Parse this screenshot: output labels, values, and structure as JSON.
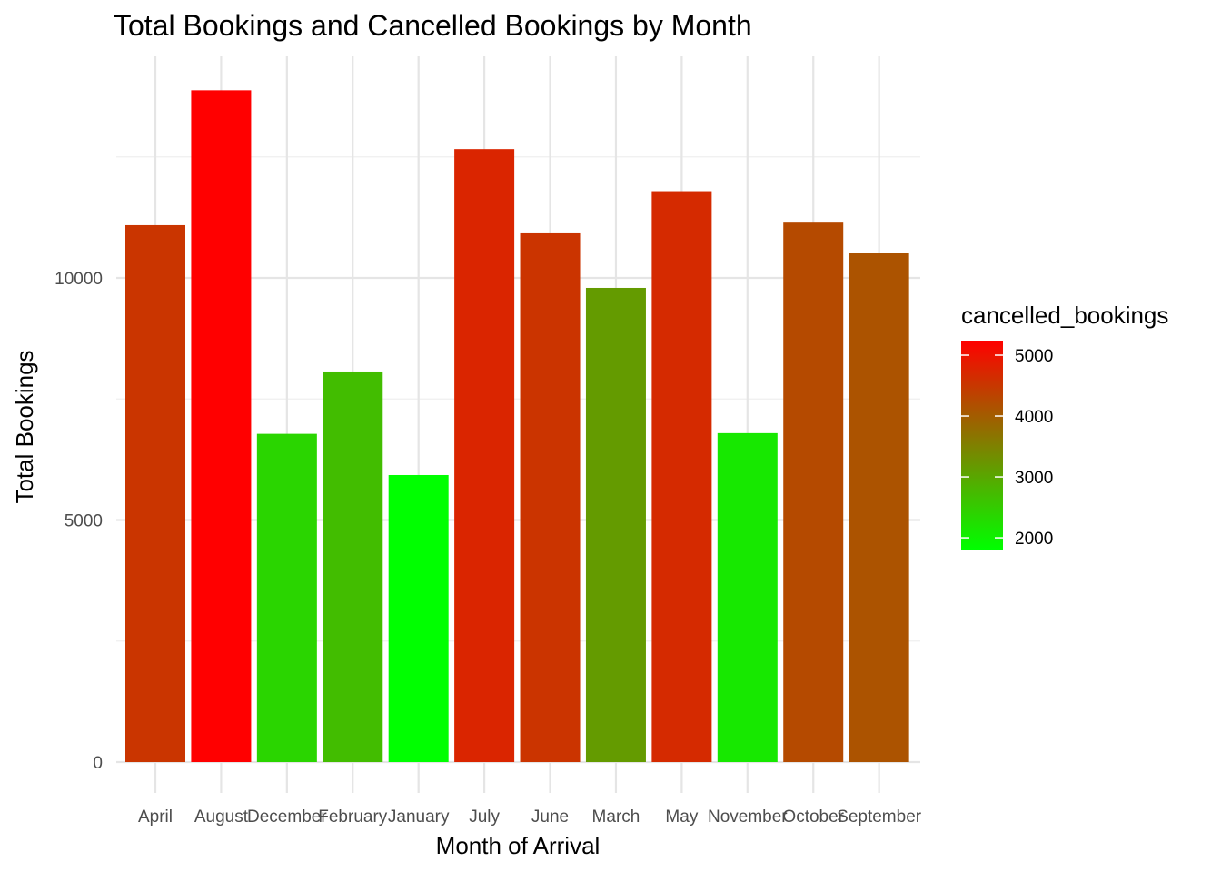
{
  "chart_data": {
    "type": "bar",
    "title": "Total Bookings and Cancelled Bookings by Month",
    "xlabel": "Month of Arrival",
    "ylabel": "Total Bookings",
    "categories": [
      "April",
      "August",
      "December",
      "February",
      "January",
      "July",
      "June",
      "March",
      "May",
      "November",
      "October",
      "September"
    ],
    "values": [
      11089,
      13877,
      6780,
      8068,
      5929,
      12661,
      10939,
      9794,
      11791,
      6794,
      11160,
      10508
    ],
    "cancelled_bookings": [
      4524,
      5239,
      2371,
      2696,
      1807,
      4742,
      4535,
      3149,
      4677,
      2122,
      4246,
      4116
    ],
    "ylim": [
      0,
      14500
    ],
    "y_ticks": [
      0,
      5000,
      10000
    ],
    "y_tick_labels": [
      "0",
      "5000",
      "10000"
    ],
    "grid": true,
    "legend": {
      "title": "cancelled_bookings",
      "placement": "right",
      "range": [
        1807,
        5239
      ],
      "ticks": [
        2000,
        3000,
        4000,
        5000
      ],
      "tick_labels": [
        "2000",
        "3000",
        "4000",
        "5000"
      ],
      "color_low": "#00ff00",
      "color_high": "#ff0000"
    }
  }
}
